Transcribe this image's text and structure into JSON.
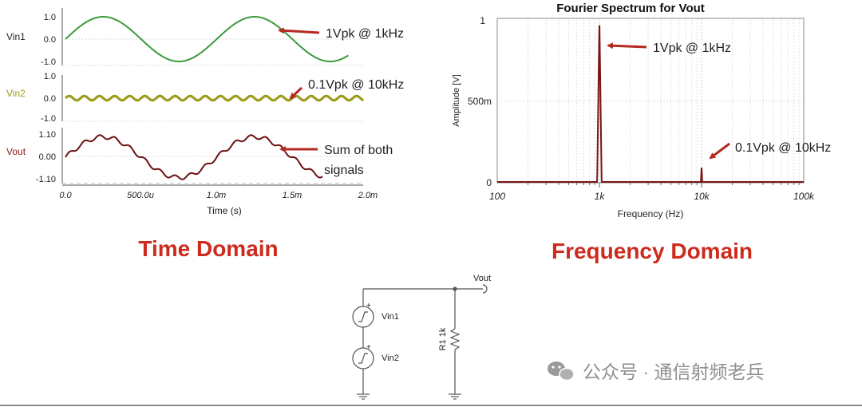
{
  "time_panel": {
    "plots": [
      {
        "label": "Vin1",
        "ticks": [
          "1.0",
          "0.0",
          "-1.0"
        ],
        "label_color": "#222222",
        "trace_color": "#3a9b3a"
      },
      {
        "label": "Vin2",
        "ticks": [
          "1.0",
          "0.0",
          "-1.0"
        ],
        "label_color": "#9a9a14",
        "trace_color": "#9a9a14"
      },
      {
        "label": "Vout",
        "ticks": [
          "1.10",
          "0.00",
          "-1.10"
        ],
        "label_color": "#8b1a1a",
        "trace_color": "#6b1010"
      }
    ],
    "x_ticks": [
      "0.0",
      "500.0u",
      "1.0m",
      "1.5m",
      "2.0m"
    ],
    "xlabel": "Time (s)",
    "annotations": [
      "1Vpk @ 1kHz",
      "0.1Vpk @ 10kHz",
      "Sum of both",
      "signals"
    ],
    "heading": "Time Domain"
  },
  "freq_panel": {
    "title": "Fourier Spectrum for Vout",
    "y_ticks": [
      "1",
      "500m",
      "0"
    ],
    "ylabel": "Amplitude [V]",
    "x_ticks": [
      "100",
      "1k",
      "10k",
      "100k"
    ],
    "xlabel": "Frequency (Hz)",
    "annotations": [
      "1Vpk @ 1kHz",
      "0.1Vpk @ 10kHz"
    ],
    "heading": "Frequency Domain"
  },
  "circuit": {
    "out_label": "Vout",
    "source1": "Vin1",
    "source2": "Vin2",
    "resistor": "R1 1k",
    "plus1": "+",
    "plus2": "+"
  },
  "watermark": "公众号 · 通信射频老兵",
  "colors": {
    "heading_red": "#cc2b1d",
    "arrow_red": "#b52a22",
    "spectrum_line": "#7a1414"
  },
  "chart_data": [
    {
      "type": "line",
      "title": "",
      "xlabel": "Time (s)",
      "ylabel": "Vin1",
      "xlim": [
        0,
        0.002
      ],
      "ylim": [
        -1.0,
        1.0
      ],
      "series": [
        {
          "name": "Vin1",
          "function": "sine",
          "amplitude": 1.0,
          "frequency_hz": 1000,
          "t_end": 0.00187
        }
      ]
    },
    {
      "type": "line",
      "title": "",
      "xlabel": "Time (s)",
      "ylabel": "Vin2",
      "xlim": [
        0,
        0.002
      ],
      "ylim": [
        -1.0,
        1.0
      ],
      "series": [
        {
          "name": "Vin2",
          "function": "sine",
          "amplitude": 0.1,
          "frequency_hz": 10000,
          "t_end": 0.00197
        }
      ]
    },
    {
      "type": "line",
      "title": "",
      "xlabel": "Time (s)",
      "ylabel": "Vout",
      "xlim": [
        0,
        0.002
      ],
      "ylim": [
        -1.1,
        1.1
      ],
      "series": [
        {
          "name": "Vout",
          "function": "sum",
          "components": [
            {
              "amplitude": 1.0,
              "frequency_hz": 1000
            },
            {
              "amplitude": 0.1,
              "frequency_hz": 10000
            }
          ],
          "t_end": 0.0017
        }
      ]
    },
    {
      "type": "line",
      "title": "Fourier Spectrum for Vout",
      "xlabel": "Frequency (Hz)",
      "ylabel": "Amplitude [V]",
      "x_scale": "log",
      "xlim": [
        100,
        100000
      ],
      "ylim": [
        0,
        1
      ],
      "grid": true,
      "peaks": [
        {
          "x": 1000,
          "y": 1.0
        },
        {
          "x": 10000,
          "y": 0.1
        }
      ]
    }
  ]
}
